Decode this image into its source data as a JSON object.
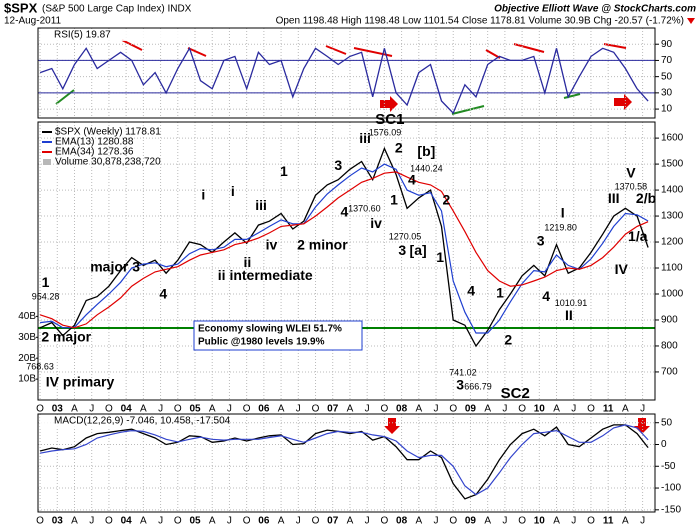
{
  "header": {
    "symbol": "$SPX",
    "name": "(S&P 500 Large Cap Index) INDX",
    "date": "12-Aug-2011",
    "quote": "Open 1198.48  High 1198.48  Low 1101.54  Close 1178.81  Volume 30.9B  Chg -20.57 (-1.72%)",
    "source": "Objective Elliott Wave @ StockCharts.com"
  },
  "chart_data": [
    {
      "type": "line",
      "title": "RSI(5) 19.87",
      "x": [
        2002.75,
        2002.92,
        2003.08,
        2003.25,
        2003.42,
        2003.58,
        2003.75,
        2003.92,
        2004.08,
        2004.25,
        2004.42,
        2004.58,
        2004.75,
        2004.92,
        2005.08,
        2005.25,
        2005.42,
        2005.58,
        2005.75,
        2005.92,
        2006.08,
        2006.25,
        2006.42,
        2006.58,
        2006.75,
        2006.92,
        2007.08,
        2007.25,
        2007.42,
        2007.58,
        2007.75,
        2007.92,
        2008.08,
        2008.25,
        2008.42,
        2008.58,
        2008.75,
        2008.92,
        2009.08,
        2009.25,
        2009.42,
        2009.58,
        2009.75,
        2009.92,
        2010.08,
        2010.25,
        2010.42,
        2010.58,
        2010.75,
        2010.92,
        2011.08,
        2011.25,
        2011.42,
        2011.58
      ],
      "series": [
        {
          "name": "RSI(5)",
          "color": "#2a2a9e",
          "values": [
            55,
            60,
            35,
            65,
            85,
            60,
            70,
            80,
            70,
            40,
            55,
            30,
            60,
            85,
            45,
            35,
            70,
            75,
            35,
            80,
            65,
            70,
            25,
            60,
            85,
            75,
            65,
            75,
            80,
            25,
            85,
            30,
            15,
            55,
            65,
            20,
            5,
            40,
            25,
            65,
            75,
            70,
            70,
            75,
            30,
            85,
            25,
            50,
            75,
            85,
            80,
            60,
            35,
            19.87
          ]
        }
      ],
      "levels": [
        30,
        70
      ],
      "xlim": [
        2002.72,
        2011.68
      ],
      "ylim": [
        -1,
        110
      ],
      "yticks": [
        10,
        30,
        50,
        70,
        90
      ]
    },
    {
      "type": "line",
      "x": [
        2002.75,
        2002.92,
        2003.08,
        2003.25,
        2003.42,
        2003.58,
        2003.75,
        2003.92,
        2004.08,
        2004.25,
        2004.42,
        2004.58,
        2004.75,
        2004.92,
        2005.08,
        2005.25,
        2005.42,
        2005.58,
        2005.75,
        2005.92,
        2006.08,
        2006.25,
        2006.42,
        2006.58,
        2006.75,
        2006.92,
        2007.08,
        2007.25,
        2007.42,
        2007.58,
        2007.75,
        2007.92,
        2008.08,
        2008.25,
        2008.42,
        2008.58,
        2008.75,
        2008.92,
        2009.08,
        2009.25,
        2009.42,
        2009.58,
        2009.75,
        2009.92,
        2010.08,
        2010.25,
        2010.42,
        2010.58,
        2010.75,
        2010.92,
        2011.08,
        2011.25,
        2011.42,
        2011.58
      ],
      "series": [
        {
          "name": "$SPX (Weekly) 1178.81",
          "color": "#000000",
          "values": [
            870,
            890,
            840,
            880,
            975,
            990,
            1030,
            1090,
            1140,
            1110,
            1130,
            1080,
            1130,
            1200,
            1190,
            1160,
            1200,
            1235,
            1195,
            1265,
            1280,
            1310,
            1250,
            1280,
            1380,
            1420,
            1440,
            1480,
            1510,
            1440,
            1560,
            1460,
            1330,
            1370,
            1400,
            1260,
            900,
            880,
            800,
            860,
            940,
            1000,
            1070,
            1110,
            1070,
            1190,
            1080,
            1100,
            1160,
            1230,
            1300,
            1330,
            1300,
            1178.81
          ]
        },
        {
          "name": "EMA(13) 1280.88",
          "color": "#1f3fd0",
          "values": [
            890,
            895,
            870,
            872,
            920,
            960,
            1000,
            1045,
            1100,
            1115,
            1120,
            1105,
            1115,
            1155,
            1175,
            1170,
            1180,
            1210,
            1210,
            1235,
            1260,
            1285,
            1270,
            1270,
            1335,
            1385,
            1420,
            1455,
            1485,
            1470,
            1500,
            1480,
            1400,
            1380,
            1390,
            1320,
            1050,
            930,
            850,
            850,
            900,
            970,
            1040,
            1090,
            1085,
            1150,
            1110,
            1095,
            1135,
            1195,
            1260,
            1310,
            1305,
            1280.88
          ]
        },
        {
          "name": "EMA(34) 1278.36",
          "color": "#e00000",
          "values": [
            920,
            905,
            880,
            870,
            885,
            920,
            950,
            985,
            1030,
            1060,
            1085,
            1095,
            1105,
            1130,
            1150,
            1160,
            1170,
            1190,
            1200,
            1215,
            1235,
            1260,
            1265,
            1270,
            1300,
            1335,
            1370,
            1400,
            1430,
            1445,
            1465,
            1470,
            1450,
            1430,
            1420,
            1395,
            1320,
            1240,
            1160,
            1090,
            1050,
            1030,
            1035,
            1050,
            1065,
            1090,
            1100,
            1095,
            1110,
            1140,
            1180,
            1230,
            1260,
            1278.36
          ]
        }
      ],
      "volume_label": "Volume 30,878,238,720",
      "xlim": [
        2002.72,
        2011.68
      ],
      "ylim": [
        592,
        1662
      ],
      "yticks": [
        700,
        800,
        900,
        1000,
        1100,
        1200,
        1300,
        1400,
        1500,
        1600
      ],
      "y2lim": [
        0,
        133000000000
      ],
      "y2ticks": [
        {
          "value": 40000000000,
          "label": "40B"
        },
        {
          "value": 30000000000,
          "label": "30B"
        },
        {
          "value": 20000000000,
          "label": "20B"
        },
        {
          "value": 10000000000,
          "label": "10B"
        }
      ],
      "xticks": [
        {
          "value": 2002.75,
          "label": "O"
        },
        {
          "value": 2003,
          "label": "03"
        },
        {
          "value": 2003.25,
          "label": "A"
        },
        {
          "value": 2003.5,
          "label": "J"
        },
        {
          "value": 2003.75,
          "label": "O"
        },
        {
          "value": 2004,
          "label": "04"
        },
        {
          "value": 2004.25,
          "label": "A"
        },
        {
          "value": 2004.5,
          "label": "J"
        },
        {
          "value": 2004.75,
          "label": "O"
        },
        {
          "value": 2005,
          "label": "05"
        },
        {
          "value": 2005.25,
          "label": "A"
        },
        {
          "value": 2005.5,
          "label": "J"
        },
        {
          "value": 2005.75,
          "label": "O"
        },
        {
          "value": 2006,
          "label": "06"
        },
        {
          "value": 2006.25,
          "label": "A"
        },
        {
          "value": 2006.5,
          "label": "J"
        },
        {
          "value": 2006.75,
          "label": "O"
        },
        {
          "value": 2007,
          "label": "07"
        },
        {
          "value": 2007.25,
          "label": "A"
        },
        {
          "value": 2007.5,
          "label": "J"
        },
        {
          "value": 2007.75,
          "label": "O"
        },
        {
          "value": 2008,
          "label": "08"
        },
        {
          "value": 2008.25,
          "label": "A"
        },
        {
          "value": 2008.5,
          "label": "J"
        },
        {
          "value": 2008.75,
          "label": "O"
        },
        {
          "value": 2009,
          "label": "09"
        },
        {
          "value": 2009.25,
          "label": "A"
        },
        {
          "value": 2009.5,
          "label": "J"
        },
        {
          "value": 2009.75,
          "label": "O"
        },
        {
          "value": 2010,
          "label": "10"
        },
        {
          "value": 2010.25,
          "label": "A"
        },
        {
          "value": 2010.5,
          "label": "J"
        },
        {
          "value": 2010.75,
          "label": "O"
        },
        {
          "value": 2011,
          "label": "11"
        },
        {
          "value": 2011.25,
          "label": "A"
        },
        {
          "value": 2011.5,
          "label": "J"
        }
      ],
      "reference_line": {
        "value": 869,
        "color": "#008000"
      },
      "box_text": [
        "Economy slowing WLEI 51.7%",
        "Public @1980 levels 19.9%"
      ],
      "annotations": [
        {
          "text": "1",
          "x": 2002.83,
          "y": 1042,
          "color": "#000000"
        },
        {
          "text": "954.28",
          "x": 2002.83,
          "y": 988,
          "color": "#000000"
        },
        {
          "text": "major 3",
          "x": 2003.84,
          "y": 1100,
          "color": "#000000"
        },
        {
          "text": "4",
          "x": 2004.54,
          "y": 996,
          "color": "#000000"
        },
        {
          "text": "i",
          "x": 2005.12,
          "y": 1377,
          "color": "#7a1f7a"
        },
        {
          "text": "i",
          "x": 2005.55,
          "y": 1392,
          "color": "#2e7d32"
        },
        {
          "text": "iii",
          "x": 2005.96,
          "y": 1338,
          "color": "#2e7d32"
        },
        {
          "text": "ii",
          "x": 2005.76,
          "y": 1119,
          "color": "#2e7d32"
        },
        {
          "text": "iv",
          "x": 2006.11,
          "y": 1185,
          "color": "#2e7d32"
        },
        {
          "text": "1",
          "x": 2006.29,
          "y": 1469,
          "color": "#000000"
        },
        {
          "text": "ii intermediate",
          "x": 2006.02,
          "y": 1069,
          "color": "#7a1f7a"
        },
        {
          "text": "2 minor",
          "x": 2006.85,
          "y": 1185,
          "color": "#333355"
        },
        {
          "text": "3",
          "x": 2007.08,
          "y": 1492,
          "color": "#333355"
        },
        {
          "text": "4",
          "x": 2007.17,
          "y": 1312,
          "color": "#333355"
        },
        {
          "text": "iii",
          "x": 2007.47,
          "y": 1596,
          "color": "#7a1f7a"
        },
        {
          "text": "1576.09",
          "x": 2007.76,
          "y": 1619,
          "color": "#000000"
        },
        {
          "text": "iv",
          "x": 2007.63,
          "y": 1269,
          "color": "#7a1f7a"
        },
        {
          "text": "1370.60",
          "x": 2007.46,
          "y": 1327,
          "color": "#000000"
        },
        {
          "text": "SC1",
          "x": 2007.83,
          "y": 1669,
          "color": "#00a0a0"
        },
        {
          "text": "2",
          "x": 2007.96,
          "y": 1558,
          "color": "#1f3fd0"
        },
        {
          "text": "[b]",
          "x": 2008.36,
          "y": 1546,
          "color": "#7fb0e0"
        },
        {
          "text": "1440.24",
          "x": 2008.36,
          "y": 1481,
          "color": "#000000"
        },
        {
          "text": "4",
          "x": 2008.15,
          "y": 1435,
          "color": "#1f3fd0"
        },
        {
          "text": "1",
          "x": 2007.89,
          "y": 1358,
          "color": "#1f3fd0"
        },
        {
          "text": "1270.05",
          "x": 2008.05,
          "y": 1219,
          "color": "#000000"
        },
        {
          "text": "3",
          "x": 2008.01,
          "y": 1165,
          "color": "#1f3fd0"
        },
        {
          "text": "[a]",
          "x": 2008.24,
          "y": 1165,
          "color": "#7fb0e0"
        },
        {
          "text": "2",
          "x": 2008.65,
          "y": 1358,
          "color": "#1f3fd0"
        },
        {
          "text": "1",
          "x": 2008.56,
          "y": 1138,
          "color": "#1f3fd0"
        },
        {
          "text": "4",
          "x": 2009.01,
          "y": 1008,
          "color": "#1f3fd0"
        },
        {
          "text": "741.02",
          "x": 2008.89,
          "y": 696,
          "color": "#000000"
        },
        {
          "text": "666.79",
          "x": 2009.11,
          "y": 642,
          "color": "#000000"
        },
        {
          "text": "3",
          "x": 2008.85,
          "y": 646,
          "color": "#1f3fd0"
        },
        {
          "text": "SC2",
          "x": 2009.65,
          "y": 615,
          "color": "#00a0a0"
        },
        {
          "text": "1",
          "x": 2009.43,
          "y": 1000,
          "color": "#000000"
        },
        {
          "text": "2",
          "x": 2009.55,
          "y": 819,
          "color": "#000000"
        },
        {
          "text": "3",
          "x": 2010.02,
          "y": 1200,
          "color": "#000000"
        },
        {
          "text": "I",
          "x": 2010.34,
          "y": 1308,
          "color": "#1f3fd0"
        },
        {
          "text": "1219.80",
          "x": 2010.31,
          "y": 1254,
          "color": "#000000"
        },
        {
          "text": "4",
          "x": 2010.1,
          "y": 988,
          "color": "#000000"
        },
        {
          "text": "1010.91",
          "x": 2010.46,
          "y": 962,
          "color": "#000000"
        },
        {
          "text": "II",
          "x": 2010.43,
          "y": 915,
          "color": "#1f3fd0"
        },
        {
          "text": "III",
          "x": 2011.08,
          "y": 1365,
          "color": "#1f3fd0"
        },
        {
          "text": "IV",
          "x": 2011.19,
          "y": 1092,
          "color": "#1f3fd0"
        },
        {
          "text": "V",
          "x": 2011.33,
          "y": 1462,
          "color": "#1f3fd0"
        },
        {
          "text": "1370.58",
          "x": 2011.33,
          "y": 1412,
          "color": "#000000"
        },
        {
          "text": "2/b",
          "x": 2011.55,
          "y": 1365,
          "color": "#000000"
        },
        {
          "text": "1/a",
          "x": 2011.43,
          "y": 1219,
          "color": "#000000"
        },
        {
          "text": "2 major",
          "x": 2003.13,
          "y": 831,
          "color": "#000000"
        },
        {
          "text": "768.63",
          "x": 2002.75,
          "y": 719,
          "color": "#000000"
        },
        {
          "text": "IV primary",
          "x": 2003.33,
          "y": 658,
          "color": "#1f3fd0"
        }
      ]
    },
    {
      "type": "line",
      "title": "MACD(12,26,9) -7.046, 10.458, -17.504",
      "x": [
        2002.75,
        2002.92,
        2003.08,
        2003.25,
        2003.42,
        2003.58,
        2003.75,
        2003.92,
        2004.08,
        2004.25,
        2004.42,
        2004.58,
        2004.75,
        2004.92,
        2005.08,
        2005.25,
        2005.42,
        2005.58,
        2005.75,
        2005.92,
        2006.08,
        2006.25,
        2006.42,
        2006.58,
        2006.75,
        2006.92,
        2007.08,
        2007.25,
        2007.42,
        2007.58,
        2007.75,
        2007.92,
        2008.08,
        2008.25,
        2008.42,
        2008.58,
        2008.75,
        2008.92,
        2009.08,
        2009.25,
        2009.42,
        2009.58,
        2009.75,
        2009.92,
        2010.08,
        2010.25,
        2010.42,
        2010.58,
        2010.75,
        2010.92,
        2011.08,
        2011.25,
        2011.42,
        2011.58
      ],
      "series": [
        {
          "name": "MACD",
          "color": "#000000",
          "values": [
            -15,
            -8,
            -12,
            -5,
            15,
            25,
            28,
            32,
            35,
            25,
            15,
            0,
            5,
            20,
            18,
            5,
            8,
            15,
            8,
            15,
            20,
            22,
            0,
            2,
            25,
            33,
            30,
            25,
            30,
            10,
            18,
            -5,
            -35,
            -35,
            -15,
            -30,
            -90,
            -125,
            -115,
            -80,
            -35,
            0,
            25,
            35,
            20,
            40,
            0,
            -5,
            15,
            35,
            45,
            45,
            25,
            -7.046
          ]
        },
        {
          "name": "Signal",
          "color": "#3344cc",
          "values": [
            -20,
            -15,
            -12,
            -10,
            0,
            15,
            22,
            28,
            32,
            30,
            22,
            12,
            6,
            12,
            17,
            12,
            10,
            12,
            12,
            12,
            16,
            20,
            12,
            5,
            15,
            25,
            30,
            28,
            28,
            22,
            18,
            8,
            -15,
            -30,
            -25,
            -25,
            -50,
            -95,
            -115,
            -100,
            -65,
            -30,
            0,
            25,
            28,
            32,
            18,
            5,
            5,
            20,
            38,
            45,
            38,
            10.458
          ]
        }
      ],
      "xlim": [
        2002.72,
        2011.68
      ],
      "ylim": [
        -155,
        70
      ],
      "yticks": [
        50,
        0,
        -50,
        -100,
        -150
      ]
    }
  ]
}
